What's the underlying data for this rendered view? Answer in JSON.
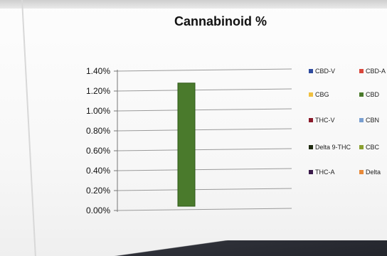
{
  "chart_data": {
    "type": "bar",
    "title": "Cannabinoid %",
    "xlabel": "",
    "ylabel": "",
    "ylim": [
      0,
      0.014
    ],
    "yticks": [
      "0.00%",
      "0.20%",
      "0.40%",
      "0.60%",
      "0.80%",
      "1.00%",
      "1.20%",
      "1.40%"
    ],
    "grid": true,
    "legend_position": "right",
    "series": [
      {
        "name": "CBD-V",
        "value": 0,
        "color": "#2e4a9e"
      },
      {
        "name": "CBD-A",
        "value": 0,
        "color": "#d9463b"
      },
      {
        "name": "CBG",
        "value": 0,
        "color": "#f0c040"
      },
      {
        "name": "CBD",
        "value": 0.0128,
        "color": "#4a7a2c"
      },
      {
        "name": "THC-V",
        "value": 0,
        "color": "#8a1a2a"
      },
      {
        "name": "CBN",
        "value": 0,
        "color": "#7a9fd0"
      },
      {
        "name": "Delta 9-THC",
        "value": 0,
        "color": "#1e2a10"
      },
      {
        "name": "CBC",
        "value": 0,
        "color": "#8aa030"
      },
      {
        "name": "THC-A",
        "value": 0,
        "color": "#3a1a4a"
      },
      {
        "name": "Delta",
        "value": 0,
        "color": "#e88a3a"
      }
    ]
  }
}
